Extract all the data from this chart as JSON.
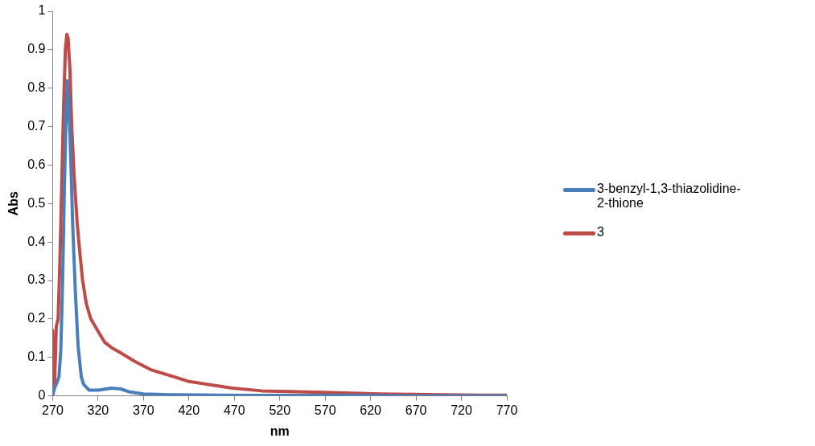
{
  "chart_data": {
    "type": "line",
    "xlabel": "nm",
    "ylabel": "Abs",
    "xlim": [
      270,
      770
    ],
    "xticks": [
      270,
      320,
      370,
      420,
      470,
      520,
      570,
      620,
      670,
      720,
      770
    ],
    "ylim": [
      0,
      1
    ],
    "yticks": [
      0,
      0.1,
      0.2,
      0.3,
      0.4,
      0.5,
      0.6,
      0.7,
      0.8,
      0.9,
      1
    ],
    "grid": false,
    "legend": "right",
    "marker": "none",
    "line_style": "solid",
    "series": [
      {
        "name": "3-benzyl-1,3-thiazolidine-2-thione",
        "color": "#4a7ebb",
        "x": [
          270,
          272,
          274,
          277,
          279,
          281,
          283,
          285,
          286,
          287,
          289,
          290.5,
          292,
          295,
          298,
          301.5,
          304,
          310,
          320,
          335,
          345,
          355,
          370,
          400,
          450,
          500,
          600,
          700,
          770
        ],
        "values": [
          0,
          0.02,
          0.03,
          0.05,
          0.12,
          0.3,
          0.55,
          0.75,
          0.82,
          0.78,
          0.68,
          0.57,
          0.45,
          0.27,
          0.13,
          0.05,
          0.03,
          0.015,
          0.015,
          0.02,
          0.018,
          0.01,
          0.005,
          0.003,
          0.002,
          0.001,
          0.001,
          0,
          0
        ]
      },
      {
        "name": "3",
        "color": "#be4b48",
        "x": [
          270,
          271,
          272,
          274,
          276,
          278,
          280,
          282,
          284,
          285.6,
          287,
          289,
          291,
          293.7,
          297,
          300,
          303,
          307,
          312,
          317,
          322,
          327,
          335,
          344,
          360,
          378,
          400,
          419,
          440,
          468,
          500,
          530,
          568,
          600,
          630,
          668,
          700,
          740,
          770
        ],
        "values": [
          0.17,
          0.06,
          0.02,
          0.18,
          0.2,
          0.35,
          0.55,
          0.75,
          0.9,
          0.94,
          0.93,
          0.85,
          0.7,
          0.57,
          0.45,
          0.37,
          0.3,
          0.24,
          0.2,
          0.18,
          0.16,
          0.14,
          0.125,
          0.113,
          0.09,
          0.068,
          0.052,
          0.038,
          0.03,
          0.02,
          0.013,
          0.011,
          0.009,
          0.007,
          0.005,
          0.004,
          0.003,
          0.002,
          0.002
        ]
      }
    ]
  }
}
